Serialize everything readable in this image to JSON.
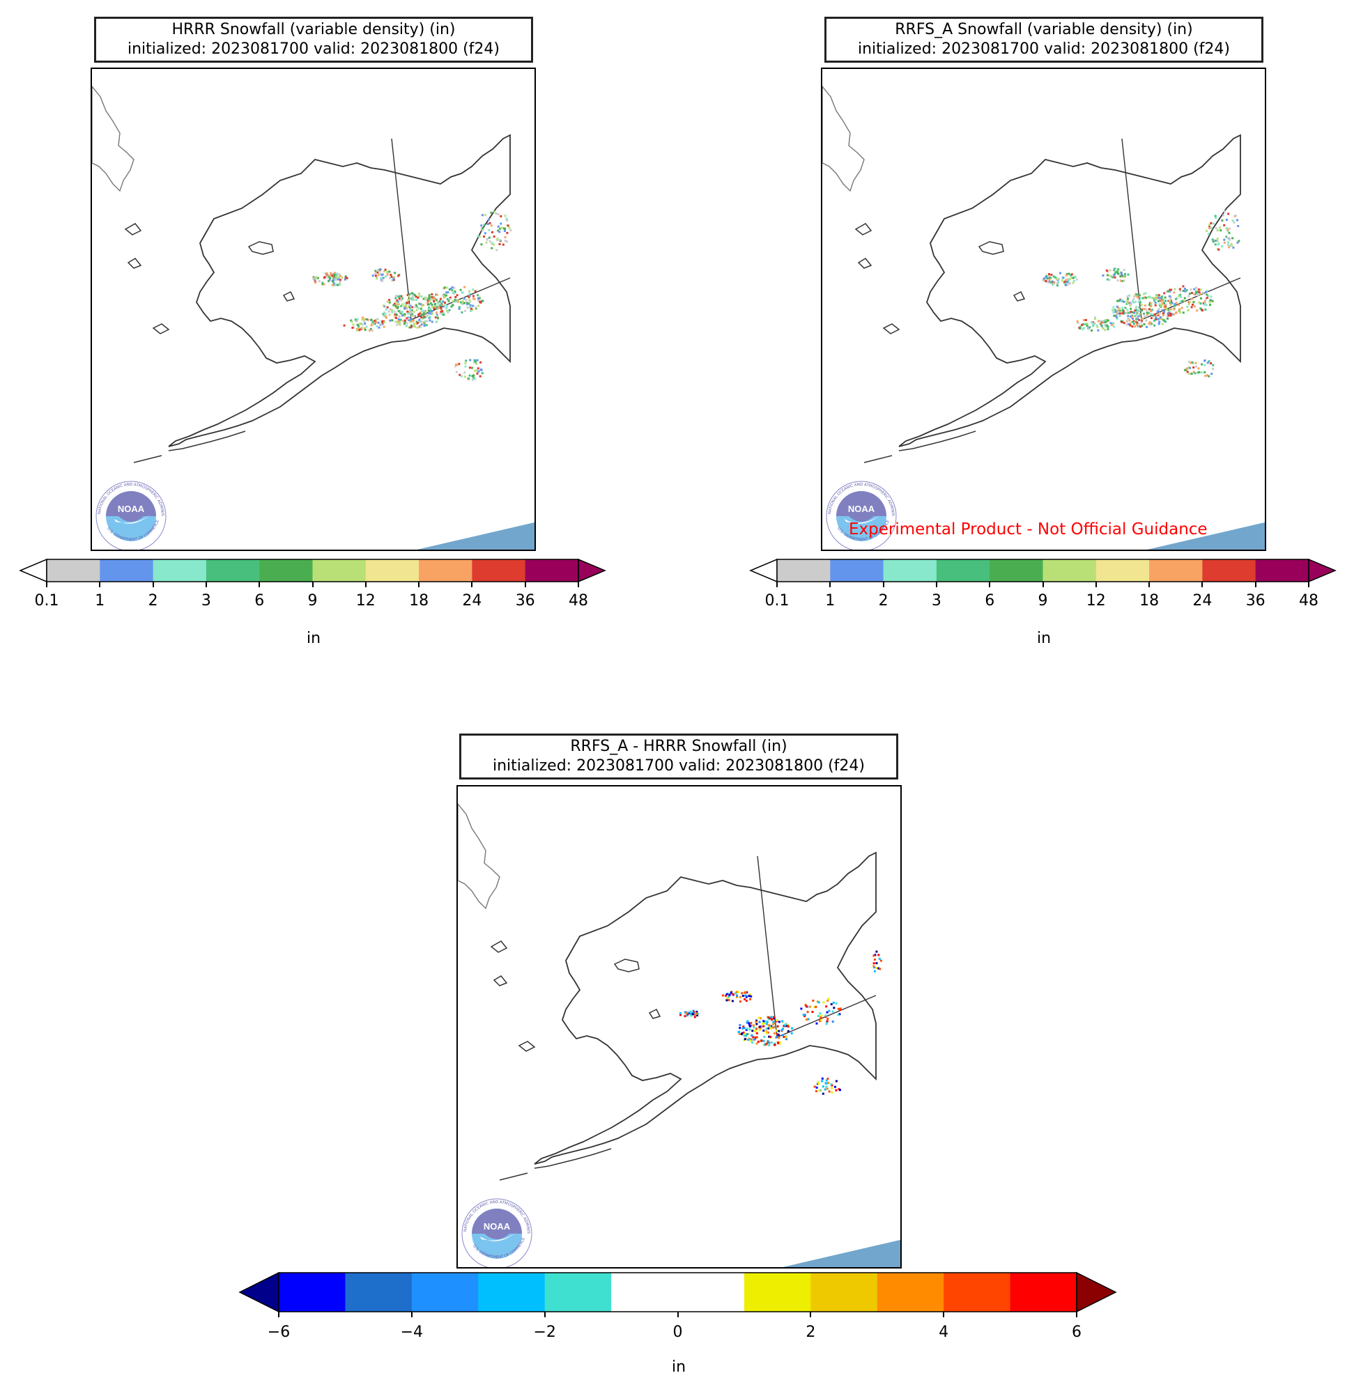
{
  "panels": [
    {
      "title_line1": "HRRR Snowfall (variable density) (in)",
      "title_line2": "initialized: 2023081700 valid: 2023081800 (f24)",
      "colorbar": {
        "ticks": [
          "0.1",
          "1",
          "2",
          "3",
          "6",
          "9",
          "12",
          "18",
          "24",
          "36",
          "48"
        ],
        "colors": [
          "#cccccc",
          "#6495ed",
          "#87e8cc",
          "#48bf7d",
          "#4aae50",
          "#b9e077",
          "#f2e591",
          "#f8a263",
          "#dd3c2e",
          "#98005a"
        ],
        "under_color": "#ffffff",
        "label": "in"
      }
    },
    {
      "title_line1": "RRFS_A Snowfall (variable density) (in)",
      "title_line2": "initialized: 2023081700 valid: 2023081800 (f24)",
      "watermark": "Experimental Product - Not Official Guidance",
      "colorbar": {
        "ticks": [
          "0.1",
          "1",
          "2",
          "3",
          "6",
          "9",
          "12",
          "18",
          "24",
          "36",
          "48"
        ],
        "colors": [
          "#cccccc",
          "#6495ed",
          "#87e8cc",
          "#48bf7d",
          "#4aae50",
          "#b9e077",
          "#f2e591",
          "#f8a263",
          "#dd3c2e",
          "#98005a"
        ],
        "under_color": "#ffffff",
        "label": "in"
      }
    },
    {
      "title_line1": "RRFS_A - HRRR Snowfall (in)",
      "title_line2": "initialized: 2023081700 valid: 2023081800 (f24)",
      "colorbar": {
        "ticks": [
          "−6",
          "−4",
          "−2",
          "0",
          "2",
          "4",
          "6"
        ],
        "colors": [
          "#0000ff",
          "#1e6ecc",
          "#1e90ff",
          "#00bfff",
          "#40e0d0",
          "#ffffff",
          "#ffffff",
          "#eeee00",
          "#eec900",
          "#ff8c00",
          "#ff4500",
          "#ff0000"
        ],
        "under_color": "#00008b",
        "over_color": "#8b0000",
        "label": "in"
      }
    }
  ],
  "logo": {
    "text": "NOAA",
    "ring_text": "NATIONAL OCEANIC AND ATMOSPHERIC ADMINISTRATION",
    "ring_text_bottom": "U.S. DEPARTMENT OF COMMERCE"
  },
  "colors": {
    "ocean_shading": "#73a6cc",
    "coast": "#333333",
    "border": "#333333"
  }
}
